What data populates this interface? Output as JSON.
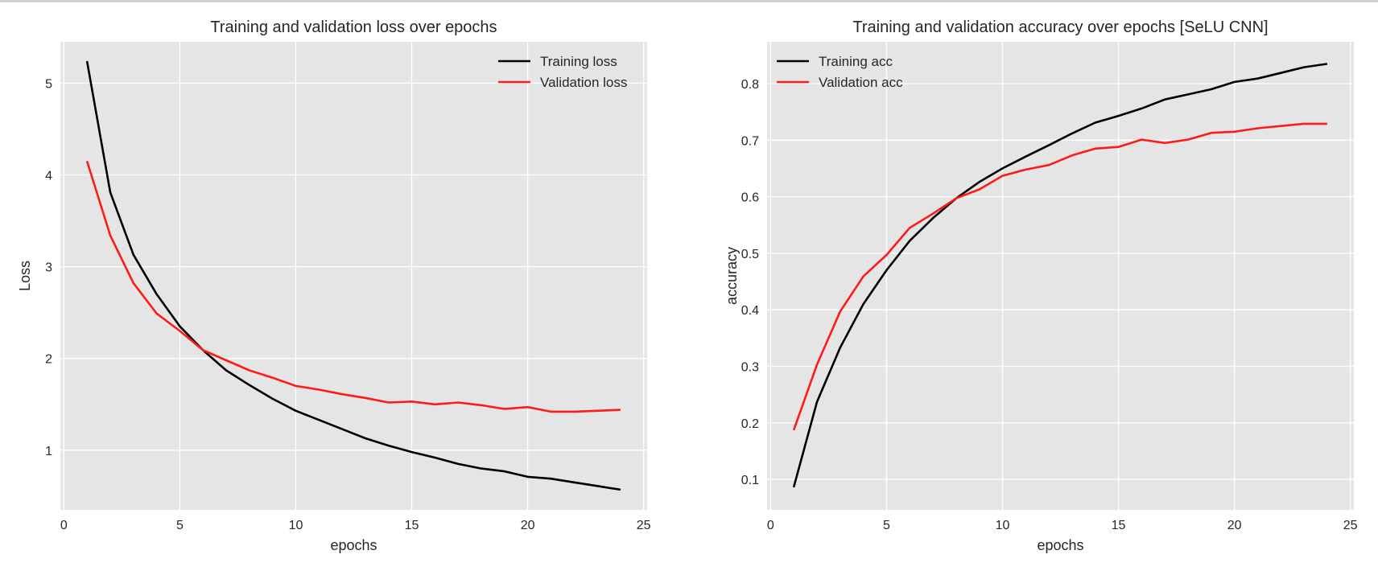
{
  "chart_data": [
    {
      "type": "line",
      "title": "Training and validation loss over epochs",
      "xlabel": "epochs",
      "ylabel": "Loss",
      "xlim": [
        -0.15,
        25.15
      ],
      "ylim": [
        0.35,
        5.45
      ],
      "xticks": [
        0,
        5,
        10,
        15,
        20,
        25
      ],
      "yticks": [
        1,
        2,
        3,
        4,
        5
      ],
      "grid": true,
      "legend_position": "top-right",
      "x": [
        1,
        2,
        3,
        4,
        5,
        6,
        7,
        8,
        9,
        10,
        11,
        12,
        13,
        14,
        15,
        16,
        17,
        18,
        19,
        20,
        21,
        22,
        23,
        24
      ],
      "series": [
        {
          "name": "Training loss",
          "color": "#000000",
          "values": [
            5.24,
            3.81,
            3.13,
            2.7,
            2.35,
            2.09,
            1.87,
            1.71,
            1.56,
            1.43,
            1.33,
            1.23,
            1.13,
            1.05,
            0.98,
            0.92,
            0.85,
            0.8,
            0.77,
            0.71,
            0.69,
            0.65,
            0.61,
            0.57
          ]
        },
        {
          "name": "Validation loss",
          "color": "#ff1a1a",
          "values": [
            4.15,
            3.34,
            2.82,
            2.49,
            2.3,
            2.09,
            1.98,
            1.87,
            1.79,
            1.7,
            1.66,
            1.61,
            1.57,
            1.52,
            1.53,
            1.5,
            1.52,
            1.49,
            1.45,
            1.47,
            1.42,
            1.42,
            1.43,
            1.44
          ]
        }
      ]
    },
    {
      "type": "line",
      "title": "Training and validation accuracy over epochs [SeLU CNN]",
      "xlabel": "epochs",
      "ylabel": "accuracy",
      "xlim": [
        -0.15,
        25.15
      ],
      "ylim": [
        0.046,
        0.874
      ],
      "xticks": [
        0,
        5,
        10,
        15,
        20,
        25
      ],
      "yticks": [
        0.1,
        0.2,
        0.3,
        0.4,
        0.5,
        0.6,
        0.7,
        0.8
      ],
      "grid": true,
      "legend_position": "top-left",
      "x": [
        1,
        2,
        3,
        4,
        5,
        6,
        7,
        8,
        9,
        10,
        11,
        12,
        13,
        14,
        15,
        16,
        17,
        18,
        19,
        20,
        21,
        22,
        23,
        24
      ],
      "series": [
        {
          "name": "Training acc",
          "color": "#000000",
          "values": [
            0.086,
            0.237,
            0.333,
            0.41,
            0.47,
            0.522,
            0.562,
            0.597,
            0.626,
            0.65,
            0.671,
            0.691,
            0.712,
            0.731,
            0.743,
            0.756,
            0.772,
            0.781,
            0.79,
            0.803,
            0.809,
            0.819,
            0.829,
            0.835
          ]
        },
        {
          "name": "Validation acc",
          "color": "#ff1a1a",
          "values": [
            0.187,
            0.303,
            0.397,
            0.459,
            0.497,
            0.545,
            0.57,
            0.597,
            0.613,
            0.637,
            0.648,
            0.656,
            0.673,
            0.685,
            0.688,
            0.701,
            0.695,
            0.701,
            0.713,
            0.715,
            0.721,
            0.725,
            0.729,
            0.729
          ]
        }
      ]
    }
  ]
}
